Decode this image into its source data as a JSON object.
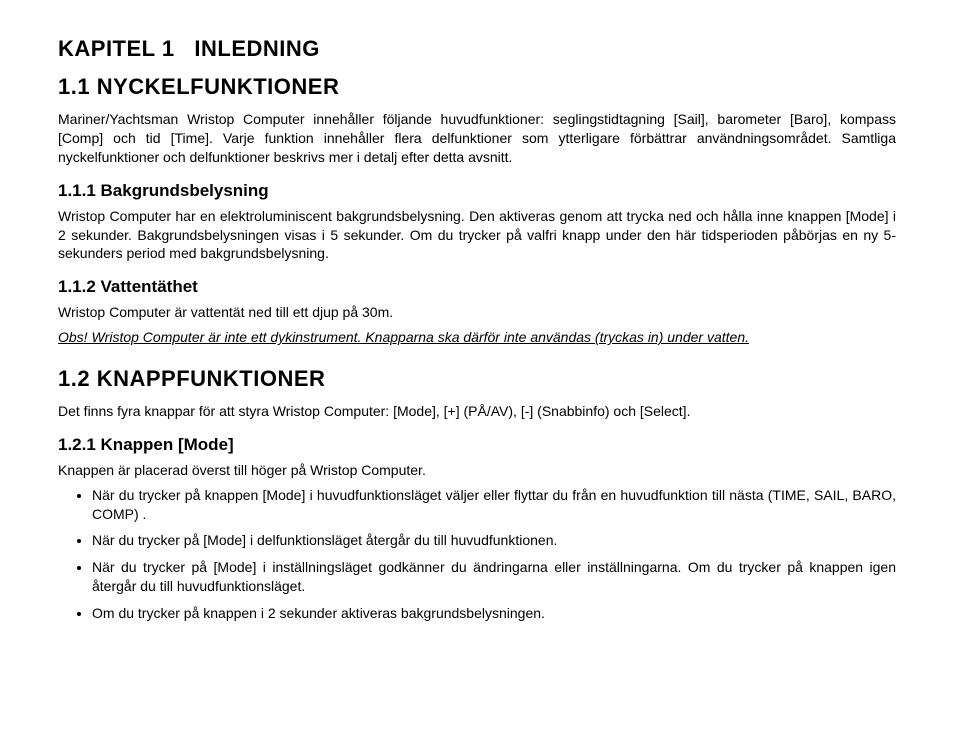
{
  "chapter": {
    "number": "KAPITEL 1",
    "title": "INLEDNING"
  },
  "section1": {
    "heading": "1.1  NYCKELFUNKTIONER",
    "body": "Mariner/Yachtsman Wristop Computer innehåller följande huvudfunktioner: seglingstidtagning [Sail],  barometer [Baro], kompass [Comp] och tid [Time]. Varje funktion innehåller flera delfunktioner som ytterligare förbättrar användningsområdet. Samtliga nyckelfunktioner och delfunktioner beskrivs mer i detalj efter detta avsnitt.",
    "sub1": {
      "heading": "1.1.1  Bakgrundsbelysning",
      "body": "Wristop Computer har en elektroluminiscent bakgrundsbelysning. Den aktiveras genom att trycka ned och hålla inne knappen [Mode] i 2 sekunder. Bakgrundsbelysningen visas i 5 sekunder. Om du trycker på valfri knapp under den här tidsperioden påbörjas en ny 5-sekunders period med bakgrundsbelysning."
    },
    "sub2": {
      "heading": "1.1.2  Vattentäthet",
      "body": "Wristop Computer är vattentät ned till ett djup på 30m.",
      "note": "Obs!  Wristop Computer är inte ett dykinstrument. Knapparna ska därför inte användas (tryckas in) under vatten."
    }
  },
  "section2": {
    "heading": "1.2  KNAPPFUNKTIONER",
    "body": "Det finns fyra knappar för att styra  Wristop Computer: [Mode], [+] (PÅ/AV), [-] (Snabbinfo) och [Select].",
    "sub1": {
      "heading": "1.2.1 Knappen [Mode]",
      "intro": "Knappen är placerad överst till höger på Wristop Computer.",
      "bullets": [
        "När du trycker på knappen [Mode] i huvudfunktionsläget väljer eller flyttar du från en huvudfunktion till nästa (TIME, SAIL, BARO, COMP) .",
        "När du trycker på [Mode] i delfunktionsläget återgår du till huvudfunktionen.",
        "När du trycker på [Mode] i inställningsläget godkänner du ändringarna eller inställningarna. Om du trycker på knappen igen återgår du till huvudfunktionsläget.",
        "Om du trycker på knappen i 2 sekunder aktiveras bakgrundsbelysningen."
      ]
    }
  }
}
